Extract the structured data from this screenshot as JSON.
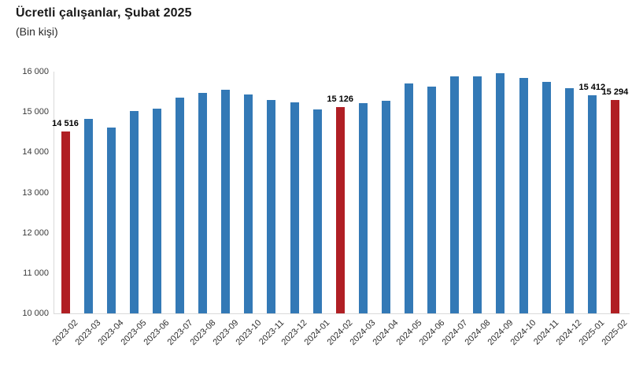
{
  "header": {
    "title": "Ücretli çalışanlar, Şubat 2025",
    "subtitle": "(Bin kişi)"
  },
  "chart_data": {
    "type": "bar",
    "title": "Ücretli çalışanlar, Şubat 2025",
    "unit_label": "(Bin kişi)",
    "categories": [
      "2023-02",
      "2023-03",
      "2023-04",
      "2023-05",
      "2023-06",
      "2023-07",
      "2023-08",
      "2023-09",
      "2023-10",
      "2023-11",
      "2023-12",
      "2024-01",
      "2024-02",
      "2024-03",
      "2024-04",
      "2024-05",
      "2024-06",
      "2024-07",
      "2024-08",
      "2024-09",
      "2024-10",
      "2024-11",
      "2024-12",
      "2025-01",
      "2025-02"
    ],
    "values": [
      14516,
      14830,
      14610,
      15015,
      15075,
      15365,
      15480,
      15560,
      15430,
      15295,
      15240,
      15060,
      15126,
      15215,
      15280,
      15700,
      15620,
      15885,
      15875,
      15965,
      15850,
      15745,
      15590,
      15412,
      15294
    ],
    "labeled_points": {
      "2023-02": "14 516",
      "2024-02": "15 126",
      "2025-01": "15 412",
      "2025-02": "15 294"
    },
    "highlighted_categories": [
      "2023-02",
      "2024-02",
      "2025-02"
    ],
    "colors": {
      "bar": "#3379b6",
      "highlight": "#b01f24",
      "axis": "#d9d9d9",
      "tick_text": "#3a3a3a",
      "value_label_text": "#000000"
    },
    "ylim": [
      10000,
      16000
    ],
    "ytick_step": 1000,
    "ytick_labels": [
      "10 000",
      "11 000",
      "12 000",
      "13 000",
      "14 000",
      "15 000",
      "16 000"
    ],
    "grid": false,
    "legend": false,
    "xlabel": "",
    "ylabel": ""
  }
}
